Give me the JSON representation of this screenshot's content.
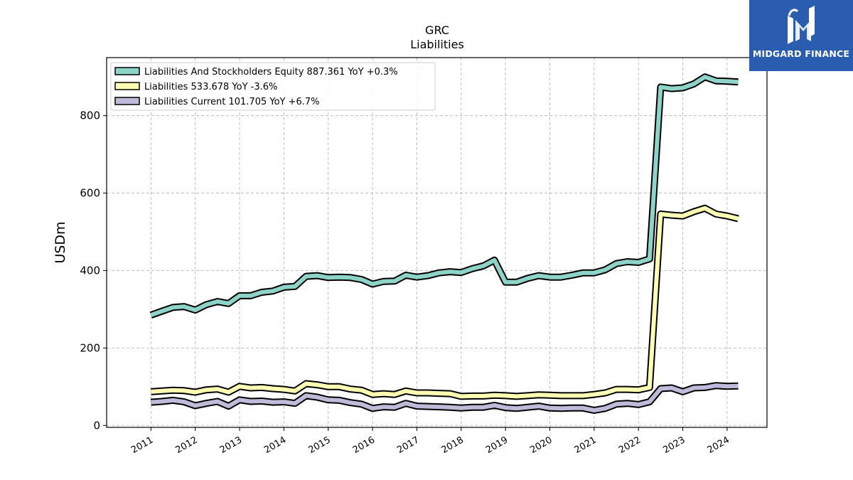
{
  "brand": {
    "name": "MIDGARD FINANCE",
    "logo_icon": "midgard-monogram-icon"
  },
  "chart_data": {
    "type": "line",
    "title": "GRC",
    "subtitle": "Liabilities",
    "ylabel": "USDm",
    "xlabel": "",
    "ylim": [
      -5,
      950
    ],
    "xlim": [
      2010.0,
      2024.9
    ],
    "yticks": [
      0,
      200,
      400,
      600,
      800
    ],
    "ytick_labels": [
      "0",
      "200",
      "400",
      "600",
      "800"
    ],
    "xticks": [
      2011,
      2012,
      2013,
      2014,
      2015,
      2016,
      2017,
      2018,
      2019,
      2020,
      2021,
      2022,
      2023,
      2024
    ],
    "xtick_labels": [
      "2011",
      "2012",
      "2013",
      "2014",
      "2015",
      "2016",
      "2017",
      "2018",
      "2019",
      "2020",
      "2021",
      "2022",
      "2023",
      "2024"
    ],
    "grid": true,
    "legend_position": "top-left",
    "x": [
      2011.0,
      2011.25,
      2011.5,
      2011.75,
      2012.0,
      2012.25,
      2012.5,
      2012.75,
      2013.0,
      2013.25,
      2013.5,
      2013.75,
      2014.0,
      2014.25,
      2014.5,
      2014.75,
      2015.0,
      2015.25,
      2015.5,
      2015.75,
      2016.0,
      2016.25,
      2016.5,
      2016.75,
      2017.0,
      2017.25,
      2017.5,
      2017.75,
      2018.0,
      2018.25,
      2018.5,
      2018.75,
      2019.0,
      2019.25,
      2019.5,
      2019.75,
      2020.0,
      2020.25,
      2020.5,
      2020.75,
      2021.0,
      2021.25,
      2021.5,
      2021.75,
      2022.0,
      2022.25,
      2022.5,
      2022.75,
      2023.0,
      2023.25,
      2023.5,
      2023.75,
      2024.0,
      2024.25
    ],
    "series": [
      {
        "name": "Liabilities And Stockholders Equity",
        "legend_label": "Liabilities And Stockholders Equity  887.361 YoY +0.3%",
        "color": "#8dd3c7",
        "values": [
          285,
          295,
          305,
          307,
          298,
          312,
          320,
          315,
          335,
          335,
          344,
          347,
          357,
          359,
          385,
          387,
          382,
          383,
          382,
          377,
          365,
          372,
          373,
          388,
          383,
          387,
          394,
          397,
          395,
          405,
          412,
          427,
          370,
          370,
          380,
          387,
          383,
          383,
          388,
          394,
          394,
          402,
          418,
          423,
          421,
          430,
          874,
          870,
          872,
          882,
          900,
          890,
          889,
          887
        ]
      },
      {
        "name": "Liabilities",
        "legend_label": "Liabilities  533.678 YoY -3.6%",
        "color": "#ffffb3",
        "values": [
          87,
          89,
          91,
          90,
          86,
          92,
          94,
          86,
          101,
          97,
          98,
          95,
          93,
          89,
          108,
          105,
          100,
          100,
          94,
          91,
          80,
          82,
          80,
          89,
          84,
          84,
          83,
          82,
          75,
          76,
          76,
          78,
          77,
          75,
          77,
          79,
          78,
          77,
          77,
          77,
          80,
          84,
          93,
          93,
          92,
          98,
          546,
          543,
          541,
          552,
          561,
          546,
          541,
          534
        ]
      },
      {
        "name": "Liabilities Current",
        "legend_label": "Liabilities Current  101.705 YoY +6.7%",
        "color": "#bebada",
        "values": [
          60,
          62,
          65,
          61,
          51,
          57,
          62,
          50,
          66,
          62,
          63,
          60,
          61,
          57,
          77,
          73,
          66,
          65,
          59,
          55,
          44,
          48,
          47,
          57,
          50,
          49,
          48,
          47,
          45,
          47,
          47,
          52,
          46,
          44,
          47,
          50,
          45,
          44,
          45,
          45,
          39,
          44,
          55,
          57,
          54,
          61,
          95,
          97,
          87,
          97,
          98,
          103,
          101,
          102
        ]
      }
    ]
  }
}
